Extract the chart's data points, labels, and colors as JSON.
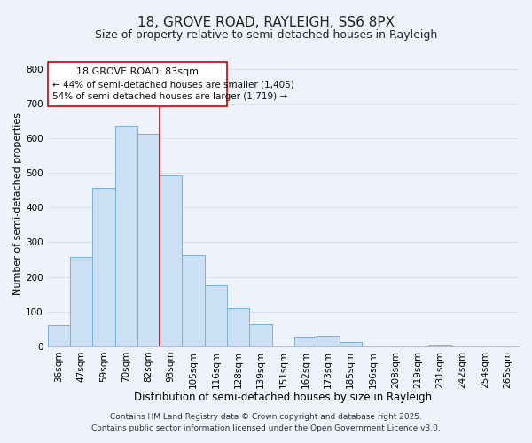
{
  "title": "18, GROVE ROAD, RAYLEIGH, SS6 8PX",
  "subtitle": "Size of property relative to semi-detached houses in Rayleigh",
  "xlabel": "Distribution of semi-detached houses by size in Rayleigh",
  "ylabel": "Number of semi-detached properties",
  "bar_labels": [
    "36sqm",
    "47sqm",
    "59sqm",
    "70sqm",
    "82sqm",
    "93sqm",
    "105sqm",
    "116sqm",
    "128sqm",
    "139sqm",
    "151sqm",
    "162sqm",
    "173sqm",
    "185sqm",
    "196sqm",
    "208sqm",
    "219sqm",
    "231sqm",
    "242sqm",
    "254sqm",
    "265sqm"
  ],
  "bar_values": [
    60,
    258,
    458,
    635,
    613,
    492,
    263,
    175,
    110,
    63,
    0,
    27,
    30,
    12,
    0,
    0,
    0,
    5,
    0,
    0,
    0
  ],
  "bar_color": "#cce0f5",
  "bar_edge_color": "#7ab0d8",
  "ylim": [
    0,
    820
  ],
  "yticks": [
    0,
    100,
    200,
    300,
    400,
    500,
    600,
    700,
    800
  ],
  "vline_x": 4.5,
  "vline_color": "#cc0000",
  "annotation_title": "18 GROVE ROAD: 83sqm",
  "annotation_line1": "← 44% of semi-detached houses are smaller (1,405)",
  "annotation_line2": "54% of semi-detached houses are larger (1,719) →",
  "annotation_box_color": "#ffffff",
  "annotation_box_edge": "#cc0000",
  "footer1": "Contains HM Land Registry data © Crown copyright and database right 2025.",
  "footer2": "Contains public sector information licensed under the Open Government Licence v3.0.",
  "background_color": "#eef2fb",
  "grid_color": "#d8e0f0",
  "title_fontsize": 11,
  "subtitle_fontsize": 9,
  "xlabel_fontsize": 8.5,
  "ylabel_fontsize": 8,
  "tick_fontsize": 7.5,
  "footer_fontsize": 6.5
}
